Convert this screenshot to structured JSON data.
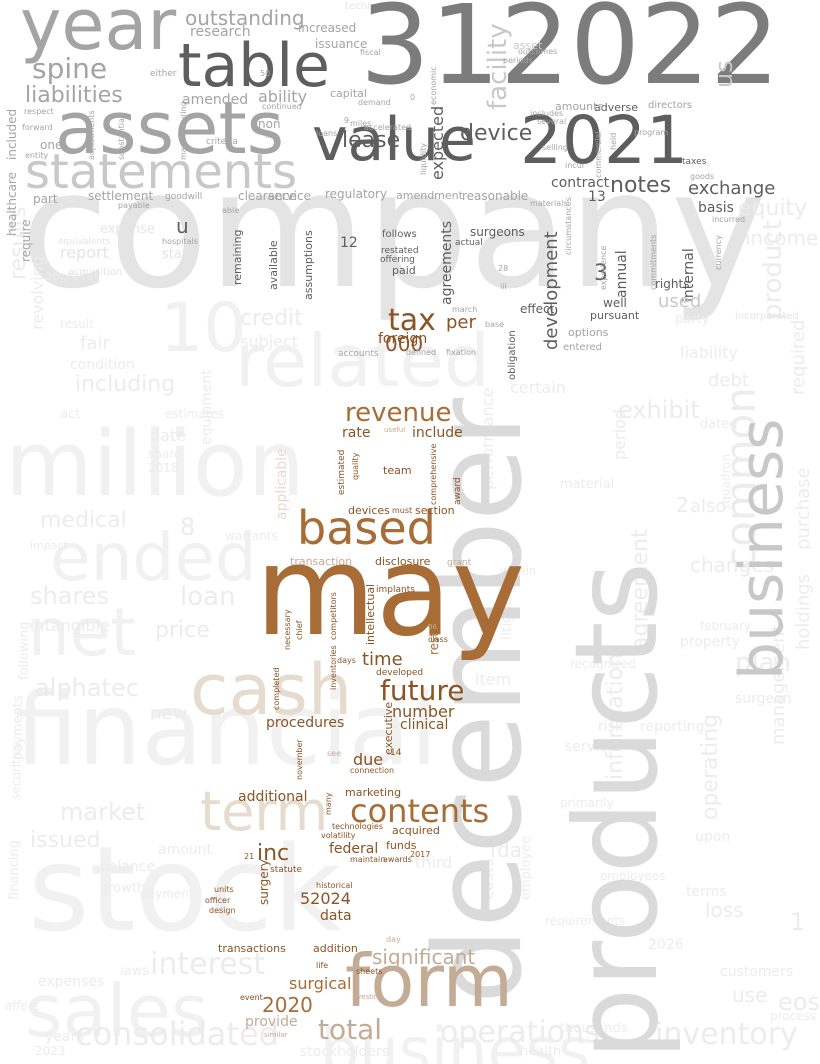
{
  "palette": {
    "background": "#ffffff",
    "ghost_light": "#f1f1f1",
    "ghost_mid": "#ececec",
    "ghost_dark": "#e4e4e4",
    "gray_light": "#dadada",
    "gray_mid": "#c8c8c8",
    "gray": "#a4a4a4",
    "gray_dark": "#7c7c7c",
    "charcoal": "#5e5e5e",
    "brown": "#a86c36",
    "brown_dark": "#8a5424",
    "tan": "#c4ab96",
    "sand": "#e6dbcf"
  },
  "words": {
    "company": "company",
    "december": "december",
    "products": "products",
    "stock": "stock",
    "financial": "financial",
    "million": "million",
    "sales": "sales",
    "ended": "ended",
    "net": "net",
    "cash": "cash",
    "related": "related",
    "business": "business",
    "common": "common",
    "may": "may",
    "form": "form",
    "based": "based",
    "term": "term",
    "contents": "contents",
    "future": "future",
    "revenue": "revenue",
    "tax": "tax",
    "n312022": "312022",
    "n2021": "2021",
    "value": "value",
    "year": "year",
    "assets": "assets",
    "table": "table",
    "statements": "statements",
    "spine": "spine",
    "liabilities": "liabilities",
    "outstanding": "outstanding",
    "research": "research",
    "increased": "increased",
    "issuance": "issuance",
    "amended": "amended",
    "ability": "ability",
    "lease": "lease",
    "device": "device",
    "notes": "notes",
    "exchange": "exchange",
    "contract": "contract",
    "expected": "expected",
    "development": "development",
    "agreements": "agreements",
    "n000": "000",
    "per": "per",
    "foreign": "foreign",
    "inc": "inc",
    "federal": "federal",
    "n52024": "52024",
    "data": "data",
    "n2020": "2020",
    "total": "total",
    "significant": "significant",
    "surgical": "surgical",
    "provide": "provide",
    "additional": "additional",
    "due": "due",
    "time": "time",
    "number": "number",
    "clinical": "clinical",
    "procedures": "procedures",
    "include": "include",
    "rate": "rate",
    "team": "team",
    "section": "section",
    "devices": "devices",
    "disclosure": "disclosure",
    "transaction": "transaction",
    "intellectual": "intellectual",
    "restricted": "restricted",
    "executive": "executive",
    "marketing": "marketing",
    "acquired": "acquired",
    "funds": "funds",
    "surgery": "surgery",
    "transactions": "transactions",
    "addition": "addition",
    "historical": "historical",
    "life": "life",
    "sheets": "sheets",
    "interest": "interest",
    "consolidated": "consolidated",
    "operations": "operations",
    "inventory": "inventory",
    "market": "market",
    "issued": "issued",
    "alphatec": "alphatec",
    "shares": "shares",
    "loan": "loan",
    "price": "price",
    "intangible": "intangible",
    "medical": "medical",
    "results": "results",
    "including": "including",
    "report": "report",
    "expense": "expense",
    "state": "state",
    "credit": "credit",
    "subject": "subject",
    "fair": "fair",
    "u": "u",
    "n10": "10",
    "equity": "equity",
    "income": "income",
    "product": "product",
    "required": "required",
    "liability": "liability",
    "debt": "debt",
    "exhibit": "exhibit",
    "period": "period",
    "changes": "changes",
    "plan": "plan",
    "information": "information",
    "agreement": "agreement",
    "management": "management",
    "purchase": "purchase",
    "holdings": "holdings",
    "loss": "loss",
    "terms": "terms",
    "use": "use",
    "eos": "eos",
    "customers": "customers",
    "years": "years",
    "laws": "laws",
    "expenses": "expenses",
    "stockholders": "stockholders",
    "costs": "costs",
    "fda": "fda",
    "risk": "risk",
    "reporting": "reporting",
    "services": "services",
    "third": "third",
    "balance": "balance",
    "amount": "amount",
    "new": "new",
    "date": "date",
    "applicable": "applicable",
    "regulatory": "regulatory",
    "amendment": "amendment",
    "reasonable": "reasonable",
    "settlement": "settlement",
    "goodwill": "goodwill",
    "clearance": "clearance",
    "service": "service",
    "healthcare": "healthcare",
    "included": "included",
    "require": "require",
    "one": "one",
    "part": "part",
    "capital": "capital",
    "non": "non",
    "facility": "facility",
    "us": "us",
    "basis": "basis",
    "internal": "internal",
    "annual": "annual",
    "rights": "rights",
    "used": "used",
    "n3": "3",
    "n12": "12",
    "n13": "13",
    "remaining": "remaining",
    "available": "available",
    "assumptions": "assumptions",
    "follows": "follows",
    "restated": "restated",
    "offering": "offering",
    "paid": "paid",
    "surgeons": "surgeons",
    "actual": "actual",
    "effect": "effect",
    "obligation": "obligation",
    "pursuant": "pursuant",
    "options": "options",
    "entered": "entered",
    "well": "well",
    "technology": "technology",
    "either": "either",
    "adverse": "adverse",
    "directors": "directors",
    "amounts": "amounts",
    "includes": "includes",
    "selling": "selling",
    "program": "program",
    "taxes": "taxes",
    "goods": "goods",
    "incurred": "incurred",
    "currency": "currency",
    "competitors": "competitors",
    "implants": "implants",
    "inventories": "inventories",
    "developed": "developed",
    "days": "days",
    "award": "award",
    "grant": "grant",
    "class": "class",
    "comprehensive": "comprehensive",
    "estimated": "estimated",
    "quality": "quality",
    "useful": "useful",
    "must": "must",
    "connection": "connection",
    "see": "see",
    "n14": "14",
    "technologies": "technologies",
    "maintain": "maintain",
    "awards": "awards",
    "statute": "statute",
    "officer": "officer",
    "design": "design",
    "units": "units",
    "event": "event",
    "vesting": "vesting",
    "similar": "similar",
    "necessary": "necessary",
    "chief": "chief",
    "completed": "completed",
    "november": "november",
    "many": "many",
    "volatility": "volatility",
    "n2017": "2017",
    "n21": "21",
    "day": "day",
    "hospitals": "hospitals",
    "equivalents": "equivalents",
    "acquisition": "acquisition",
    "accounts": "accounts",
    "defined": "defined",
    "fixation": "fixation",
    "base": "base",
    "march": "march",
    "n28": "28",
    "iii": "iii",
    "continued": "continued",
    "file": "file",
    "criteria": "criteria",
    "loans": "loans",
    "accelerated": "accelerated",
    "demand": "demand",
    "miles": "miles",
    "liquidity": "liquidity",
    "economic": "economic",
    "materials": "materials",
    "circumstances": "circumstances",
    "commercial": "commercial",
    "held": "held",
    "incur": "incur",
    "experience": "experience",
    "commitments": "commitments",
    "incorporated": "incorporated",
    "respect": "respect",
    "forward": "forward",
    "adjustments": "adjustments",
    "substantial": "substantial",
    "manufacturing": "manufacturing",
    "entity": "entity",
    "payable": "payable",
    "able": "able",
    "fiscal": "fiscal",
    "asset": "asset",
    "periods": "periods",
    "outcomes": "outcomes",
    "several": "several",
    "n50": "50",
    "n2018": "2018",
    "n2026": "2026",
    "n2023": "2023",
    "health": "health",
    "thousands": "thousands",
    "process": "process",
    "primarily": "primarily",
    "within": "within",
    "performance": "performance",
    "litigation": "litigation",
    "certain": "certain",
    "growth": "growth",
    "payments": "payments",
    "securities": "securities",
    "act": "act",
    "condition": "condition",
    "result": "result",
    "warrants": "warrants",
    "equipment": "equipment",
    "estimates": "estimates",
    "following": "following",
    "financing": "financing",
    "approval": "approval",
    "operating": "operating",
    "upon": "upon",
    "party": "party",
    "material": "material",
    "surgeon": "surgeon",
    "property": "property",
    "dated": "dated",
    "also": "also",
    "n2": "2",
    "n1": "1",
    "affect": "affect",
    "n8": "8",
    "revolving": "revolving",
    "item": "item",
    "february": "february",
    "squadron": "squadron",
    "impact": "impact",
    "requirements": "requirements",
    "employees": "employees",
    "recognized": "recognized",
    "payment": "payment",
    "n9": "9",
    "n06": "06",
    "n0": "0",
    "employee": "employee",
    "share": "share"
  }
}
